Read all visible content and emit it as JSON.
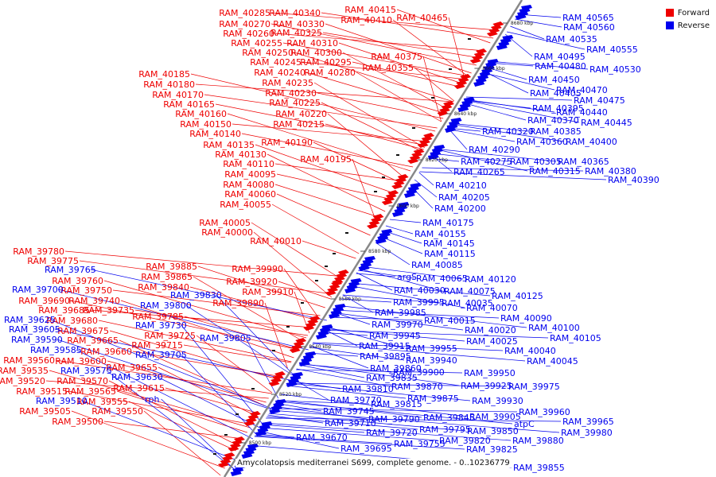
{
  "title": "Amycolatopsis mediterranei S699, complete genome. - 0..10236779",
  "legend": [
    {
      "label": "Forward",
      "color": "#ee0000"
    },
    {
      "label": "Reverse",
      "color": "#0000ee"
    }
  ],
  "colors": {
    "forward": "#ee0000",
    "reverse": "#0000ee",
    "axis": "#888888"
  },
  "ticks": [
    "8500 kbp",
    "8520 kbp",
    "8540 kbp",
    "8560 kbp",
    "8580 kbp",
    "8600 kbp",
    "8620 kbp",
    "8640 kbp",
    "8660 kbp",
    "8680 kbp"
  ],
  "forward_labels": [
    "RAM_40285",
    "RAM_40340",
    "RAM_40415",
    "RAM_40270",
    "RAM_40330",
    "RAM_40410",
    "RAM_40465",
    "RAM_40260",
    "RAM_40325",
    "RAM_40255",
    "RAM_40310",
    "RAM_40250",
    "RAM_40300",
    "RAM_40375",
    "RAM_40245",
    "RAM_40295",
    "RAM_40355",
    "RAM_40240",
    "RAM_40280",
    "RAM_40185",
    "RAM_40235",
    "RAM_40180",
    "RAM_40230",
    "RAM_40170",
    "RAM_40165",
    "RAM_40225",
    "RAM_40160",
    "RAM_40220",
    "RAM_40150",
    "RAM_40215",
    "RAM_40140",
    "RAM_40190",
    "RAM_40135",
    "RAM_40130",
    "RAM_40195",
    "RAM_40110",
    "RAM_40095",
    "RAM_40080",
    "RAM_40060",
    "RAM_40055",
    "RAM_40005",
    "RAM_40000",
    "RAM_40010",
    "RAM_39780",
    "RAM_39775",
    "RAM_39885",
    "RAM_39990",
    "RAM_39760",
    "RAM_39865",
    "RAM_39920",
    "RAM_39750",
    "RAM_39840",
    "RAM_39910",
    "RAM_39690",
    "RAM_39740",
    "RAM_39890",
    "RAM_39685",
    "RAM_39735",
    "RAM_39785",
    "RAM_39680",
    "RAM_39675",
    "RAM_39725",
    "RAM_39665",
    "RAM_39715",
    "RAM_39660",
    "RAM_39560",
    "RAM_39600",
    "RAM_39655",
    "RAM_39535",
    "RAM_39570",
    "RAM_39520",
    "RAM_39615",
    "RAM_39515",
    "RAM_39565",
    "RAM_39555",
    "RAM_39505",
    "RAM_39550",
    "RAM_39500"
  ],
  "reverse_labels": [
    "RAM_40565",
    "RAM_40560",
    "RAM_40535",
    "RAM_40555",
    "RAM_40495",
    "RAM_40480",
    "RAM_40530",
    "RAM_40450",
    "RAM_40470",
    "RAM_40405",
    "RAM_40475",
    "RAM_40395",
    "RAM_40440",
    "RAM_40370",
    "RAM_40445",
    "RAM_40320",
    "RAM_40385",
    "RAM_40360",
    "RAM_40400",
    "RAM_40290",
    "RAM_40275",
    "RAM_40305",
    "RAM_40365",
    "RAM_40265",
    "RAM_40315",
    "RAM_40380",
    "RAM_40390",
    "RAM_40210",
    "RAM_40205",
    "RAM_40200",
    "RAM_40175",
    "RAM_40155",
    "RAM_40145",
    "RAM_40115",
    "RAM_40085",
    "argS",
    "RAM_40065",
    "RAM_40120",
    "RAM_40030",
    "RAM_40075",
    "RAM_39995",
    "RAM_40035",
    "RAM_40125",
    "RAM_39985",
    "RAM_40070",
    "RAM_40015",
    "RAM_40090",
    "RAM_39970",
    "RAM_40020",
    "RAM_40100",
    "RAM_39945",
    "RAM_40105",
    "RAM_40025",
    "RAM_39915",
    "RAM_39955",
    "RAM_39895",
    "RAM_40040",
    "RAM_39940",
    "RAM_40045",
    "RAM_39860",
    "RAM_39950",
    "RAM_39900",
    "RAM_39835",
    "RAM_39870",
    "RAM_39925",
    "RAM_39975",
    "RAM_39810",
    "RAM_39875",
    "RAM_39930",
    "RAM_39770",
    "RAM_39815",
    "RAM_39745",
    "RAM_39790",
    "RAM_39845",
    "RAM_39905",
    "RAM_39960",
    "RAM_39710",
    "RAM_39795",
    "RAM_39850",
    "atpC",
    "RAM_39965",
    "RAM_39720",
    "RAM_39820",
    "RAM_39880",
    "RAM_39980",
    "RAM_39670",
    "RAM_39755",
    "RAM_39825",
    "RAM_39695",
    "RAM_39855",
    "RAM_39765",
    "RAM_39700",
    "RAM_39800",
    "RAM_39830",
    "RAM_39625",
    "RAM_39730",
    "RAM_39605",
    "RAM_39805",
    "RAM_39590",
    "RAM_39705",
    "RAM_39585",
    "RAM_39575",
    "RAM_39630",
    "RAM_39510",
    "rph"
  ]
}
